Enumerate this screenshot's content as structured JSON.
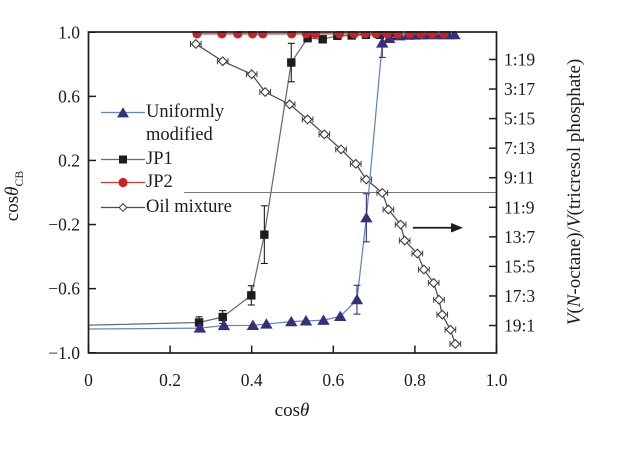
{
  "chart_data": {
    "type": "line",
    "title": "",
    "xlabel": {
      "roman": "cos",
      "italic": "θ"
    },
    "ylabel_left": {
      "roman": "cos",
      "italic": "θ",
      "sub": "CB"
    },
    "ylabel_right": {
      "parts": [
        "V",
        "(",
        "N",
        "-octane)/",
        "V",
        "(tricresol phosphate)"
      ]
    },
    "axes": {
      "x": {
        "min": 0,
        "max": 1.0,
        "tick_values": [
          0,
          0.2,
          0.4,
          0.6,
          0.8,
          1.0
        ],
        "tick_labels": [
          "0",
          "0.2",
          "0.4",
          "0.6",
          "0.8",
          "1.0"
        ]
      },
      "y_left": {
        "min": -1.0,
        "max": 1.0,
        "tick_values": [
          1.0,
          0.6,
          0.2,
          -0.2,
          -0.6,
          -1.0
        ],
        "tick_labels": [
          "1.0",
          "0.6",
          "0.2",
          "−0.2",
          "−0.6",
          "−1.0"
        ]
      },
      "y_right": {
        "tick_labels": [
          "1:19",
          "3:17",
          "5:15",
          "7:13",
          "9:11",
          "11:9",
          "13:7",
          "15:5",
          "17:3",
          "19:1"
        ],
        "first_tick_y": 0.83,
        "last_tick_y": -0.83
      }
    },
    "grid": false,
    "legend": {
      "position": "upper-left-inside",
      "items": [
        {
          "label": "Uniformly modified",
          "series": 0
        },
        {
          "label": "JP1",
          "series": 1
        },
        {
          "label": "JP2",
          "series": 2
        },
        {
          "label": "Oil mixture",
          "series": 3
        }
      ]
    },
    "series": [
      {
        "name": "Uniformly modified",
        "axis": "left",
        "marker": "triangle",
        "marker_color": "#35307d",
        "line_color": "#6286bd",
        "err_color": "#35307d",
        "line_start": [
          0,
          -0.852
        ],
        "points": [
          [
            0.273,
            -0.846
          ],
          [
            0.332,
            -0.83
          ],
          [
            0.403,
            -0.829
          ],
          [
            0.436,
            -0.821
          ],
          [
            0.497,
            -0.806
          ],
          [
            0.533,
            -0.801
          ],
          [
            0.576,
            -0.797
          ],
          [
            0.617,
            -0.773
          ],
          [
            0.658,
            -0.669
          ],
          [
            0.681,
            -0.158
          ],
          [
            0.72,
            0.933
          ],
          [
            0.737,
            0.962
          ],
          [
            0.762,
            0.978
          ],
          [
            0.783,
            0.982
          ],
          [
            0.8,
            0.983
          ],
          [
            0.817,
            0.984
          ],
          [
            0.833,
            0.985
          ],
          [
            0.85,
            0.985
          ],
          [
            0.866,
            0.985
          ],
          [
            0.882,
            0.985
          ],
          [
            0.897,
            0.985
          ]
        ],
        "yerr": {
          "8": 0.09,
          "9": 0.15,
          "10": 0.09
        }
      },
      {
        "name": "JP1",
        "axis": "left",
        "marker": "square",
        "marker_color": "#1c1c1c",
        "line_color": "#6f6a66",
        "err_color": "#1c1c1c",
        "line_start": [
          0,
          -0.828
        ],
        "points": [
          [
            0.271,
            -0.811
          ],
          [
            0.329,
            -0.777
          ],
          [
            0.399,
            -0.642
          ],
          [
            0.431,
            -0.263
          ],
          [
            0.497,
            0.811
          ],
          [
            0.537,
            0.963
          ],
          [
            0.574,
            0.956
          ],
          [
            0.61,
            0.978
          ],
          [
            0.645,
            0.98
          ],
          [
            0.68,
            0.984
          ],
          [
            0.714,
            0.984
          ],
          [
            0.748,
            0.98
          ]
        ],
        "yerr": {
          "0": 0.035,
          "1": 0.04,
          "2": 0.06,
          "3": 0.18,
          "4": 0.12
        }
      },
      {
        "name": "JP2",
        "axis": "left",
        "marker": "circle",
        "marker_color": "#cb2026",
        "line_color": "#c63831",
        "err_color": "#cb2026",
        "points": [
          [
            0.266,
            0.99
          ],
          [
            0.327,
            0.99
          ],
          [
            0.366,
            0.99
          ],
          [
            0.402,
            0.99
          ],
          [
            0.427,
            0.99
          ],
          [
            0.498,
            0.99
          ],
          [
            0.534,
            0.99
          ],
          [
            0.556,
            0.99
          ],
          [
            0.615,
            0.99
          ],
          [
            0.651,
            0.99
          ],
          [
            0.678,
            0.99
          ],
          [
            0.705,
            0.99
          ],
          [
            0.732,
            0.99
          ],
          [
            0.759,
            0.99
          ],
          [
            0.787,
            0.99
          ],
          [
            0.815,
            0.99
          ],
          [
            0.843,
            0.99
          ],
          [
            0.871,
            0.99
          ]
        ]
      },
      {
        "name": "Oil mixture",
        "axis": "right",
        "marker": "diamond",
        "marker_color": "#3a3a3a",
        "line_color": "#4d4d4d",
        "err_color": "#3a3a3a",
        "xerr": 0.013,
        "points": [
          [
            0.263,
            0.927
          ],
          [
            0.329,
            0.819
          ],
          [
            0.4,
            0.738
          ],
          [
            0.433,
            0.627
          ],
          [
            0.493,
            0.55
          ],
          [
            0.537,
            0.456
          ],
          [
            0.578,
            0.363
          ],
          [
            0.619,
            0.269
          ],
          [
            0.655,
            0.179
          ],
          [
            0.681,
            0.081
          ],
          [
            0.72,
            -0.002
          ],
          [
            0.735,
            -0.106
          ],
          [
            0.765,
            -0.2
          ],
          [
            0.775,
            -0.3
          ],
          [
            0.806,
            -0.381
          ],
          [
            0.822,
            -0.481
          ],
          [
            0.846,
            -0.564
          ],
          [
            0.859,
            -0.669
          ],
          [
            0.867,
            -0.762
          ],
          [
            0.887,
            -0.856
          ],
          [
            0.899,
            -0.945
          ]
        ]
      }
    ],
    "annotations": {
      "zero_line": {
        "y": 0,
        "x1": 0.234,
        "x2": 1.0,
        "color": "#787878"
      },
      "arrow": {
        "y": -0.22,
        "x1": 0.795,
        "x2": 0.918,
        "color": "#1c1c1c",
        "meaning": "right-axis-indicator"
      }
    },
    "colors": {
      "frame": "#1c1c1c",
      "background": "#ffffff"
    }
  }
}
